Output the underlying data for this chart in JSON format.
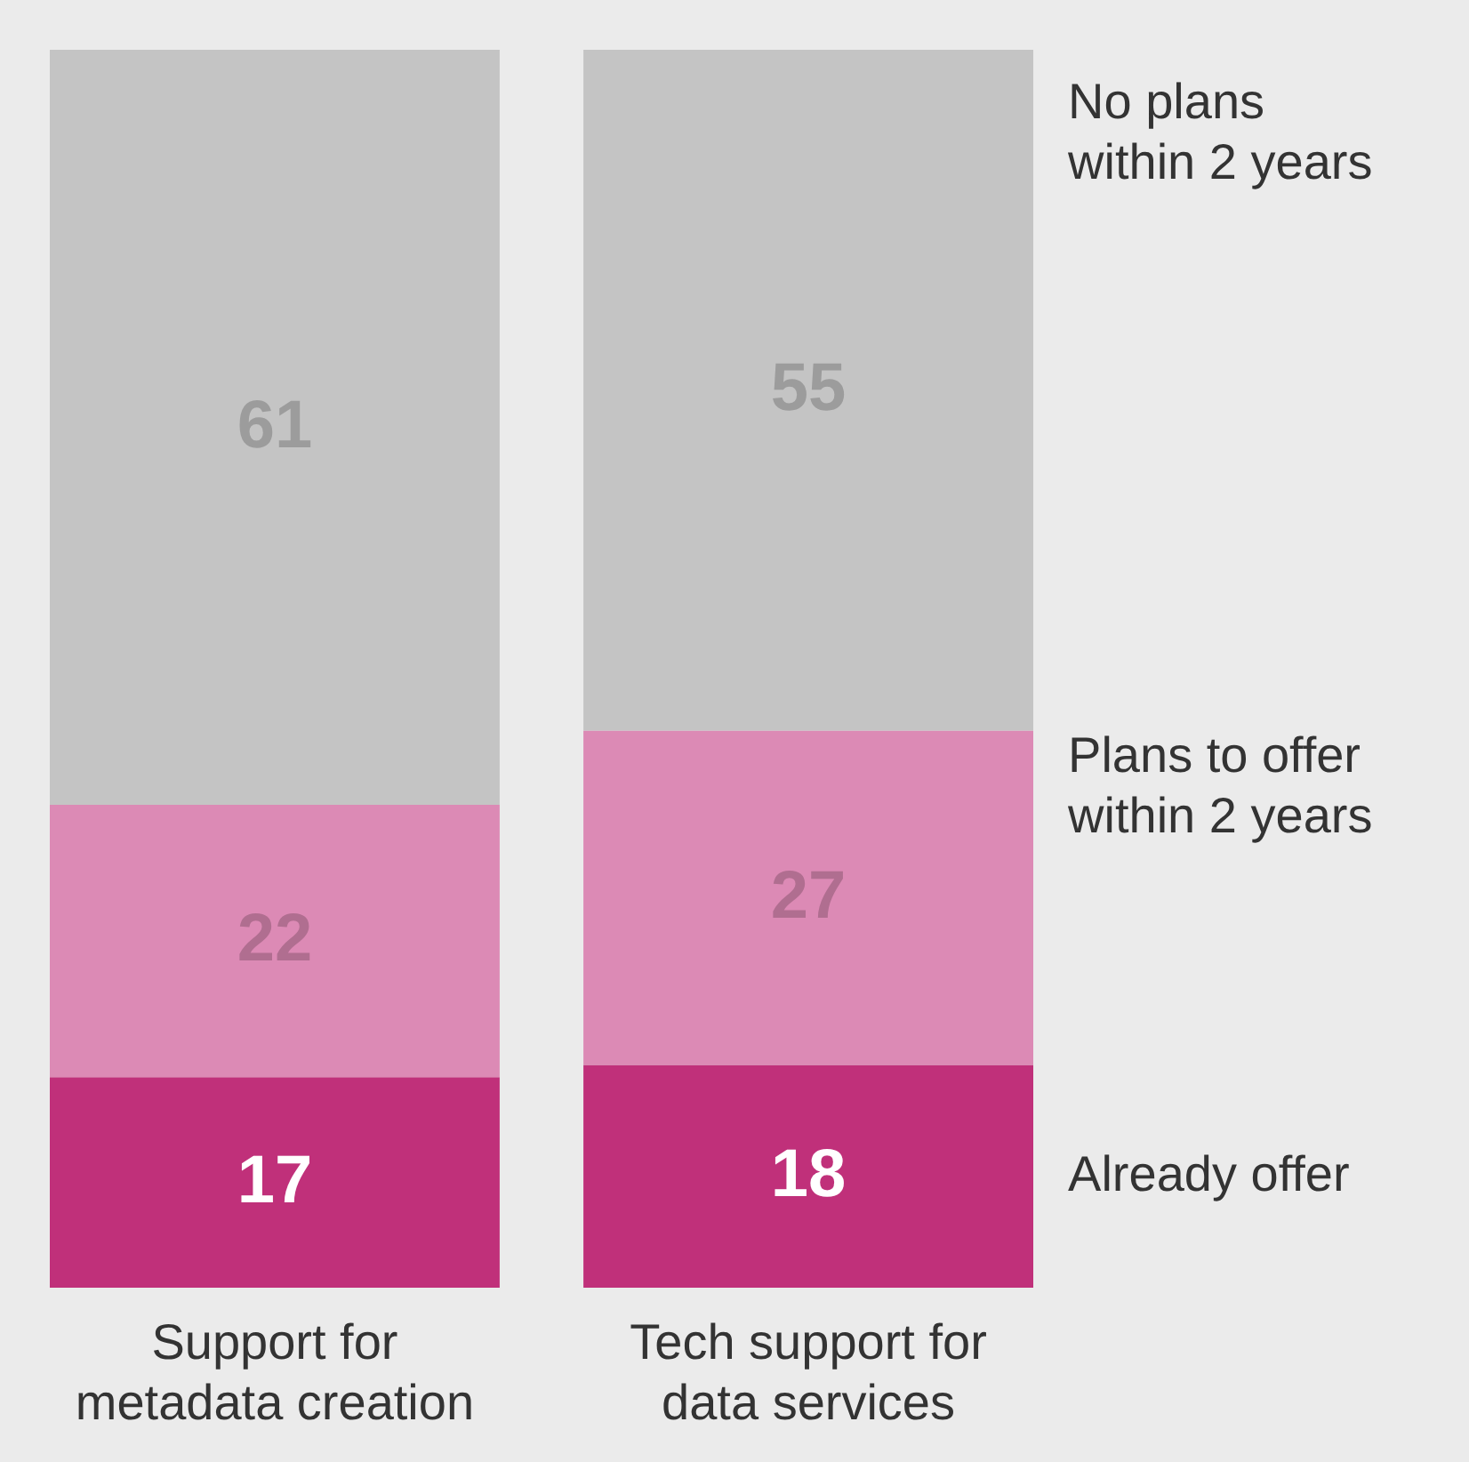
{
  "chart_data": {
    "type": "bar",
    "stacked": true,
    "data_labels": true,
    "categories": [
      "Support for metadata creation",
      "Tech support for data services"
    ],
    "series": [
      {
        "name": "Already offer",
        "color": "#c0307a",
        "values": [
          17,
          18
        ]
      },
      {
        "name": "Plans to offer within 2 years",
        "color": "#dc8ab5",
        "values": [
          22,
          27
        ]
      },
      {
        "name": "No plans within 2 years",
        "color": "#c4c4c4",
        "values": [
          61,
          55
        ]
      }
    ]
  }
}
